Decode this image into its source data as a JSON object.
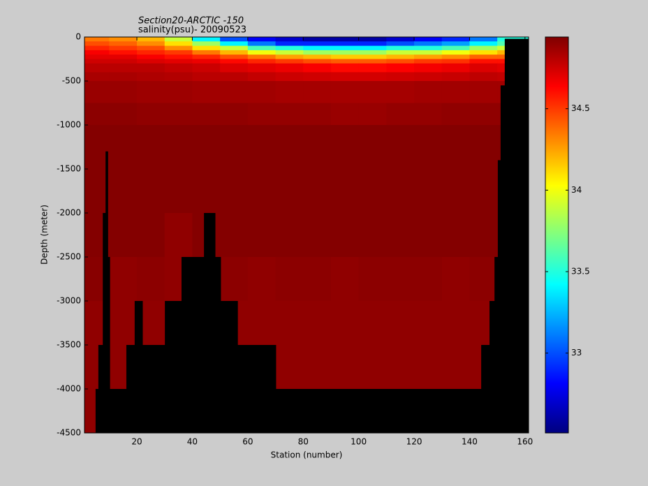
{
  "chart_data": {
    "type": "heatmap",
    "title": "Section20-ARCTIC  -150",
    "subtitle": "salinity(psu)- 20090523",
    "x_label": "Station (number)",
    "y_label": "Depth (meter)",
    "xlim": [
      1.1,
      161.3
    ],
    "ylim": [
      -4500,
      0
    ],
    "xticks": [
      20,
      40,
      60,
      80,
      100,
      120,
      140,
      160
    ],
    "yticks": [
      0,
      -500,
      -1000,
      -1500,
      -2000,
      -2500,
      -3000,
      -3500,
      -4000,
      -4500
    ],
    "colormap": "jet",
    "clim": [
      32.51,
      34.94
    ],
    "colorbar_ticks": [
      33,
      33.5,
      34,
      34.5
    ],
    "x_bins": [
      1.1,
      10,
      20,
      30,
      40,
      50,
      60,
      70,
      80,
      90,
      100,
      110,
      120,
      130,
      140,
      150,
      161.3
    ],
    "depth_bins": [
      0,
      -50,
      -100,
      -150,
      -200,
      -250,
      -300,
      -400,
      -500,
      -750,
      -1000,
      -2000,
      -2500,
      -3000,
      -3500,
      -4000,
      -4500
    ],
    "values": [
      [
        34.35,
        34.3,
        34.2,
        33.9,
        33.4,
        33.0,
        32.8,
        32.7,
        32.6,
        32.6,
        32.6,
        32.7,
        32.8,
        32.9,
        33.1,
        33.5
      ],
      [
        34.45,
        34.4,
        34.3,
        34.1,
        33.8,
        33.4,
        33.1,
        32.9,
        32.9,
        32.9,
        32.9,
        33.0,
        33.1,
        33.2,
        33.4,
        33.6
      ],
      [
        34.55,
        34.5,
        34.45,
        34.3,
        34.1,
        33.9,
        33.6,
        33.5,
        33.4,
        33.4,
        33.4,
        33.5,
        33.5,
        33.6,
        33.8,
        33.9
      ],
      [
        34.65,
        34.6,
        34.55,
        34.5,
        34.35,
        34.2,
        34.0,
        33.9,
        33.8,
        33.8,
        33.8,
        33.9,
        33.9,
        34.0,
        34.1,
        34.2
      ],
      [
        34.7,
        34.7,
        34.65,
        34.6,
        34.55,
        34.45,
        34.35,
        34.25,
        34.2,
        34.15,
        34.15,
        34.2,
        34.25,
        34.3,
        34.4,
        34.4
      ],
      [
        34.75,
        34.75,
        34.72,
        34.7,
        34.68,
        34.62,
        34.55,
        34.5,
        34.45,
        34.42,
        34.42,
        34.45,
        34.5,
        34.52,
        34.6,
        34.6
      ],
      [
        34.8,
        34.8,
        34.8,
        34.78,
        34.76,
        34.72,
        34.7,
        34.68,
        34.65,
        34.62,
        34.62,
        34.64,
        34.66,
        34.68,
        34.72,
        34.7
      ],
      [
        34.84,
        34.84,
        34.83,
        34.82,
        34.8,
        34.8,
        34.78,
        34.76,
        34.75,
        34.74,
        34.74,
        34.75,
        34.76,
        34.77,
        34.79,
        34.78
      ],
      [
        34.88,
        34.88,
        34.87,
        34.87,
        34.86,
        34.86,
        34.86,
        34.85,
        34.85,
        34.85,
        34.85,
        34.85,
        34.86,
        34.86,
        34.86,
        34.86
      ],
      [
        34.91,
        34.91,
        34.9,
        34.9,
        34.9,
        34.9,
        34.89,
        34.89,
        34.89,
        34.88,
        34.88,
        34.89,
        34.89,
        34.9,
        34.9,
        34.9
      ],
      [
        34.93,
        34.93,
        34.93,
        34.93,
        34.93,
        34.93,
        34.93,
        34.93,
        34.93,
        34.93,
        34.93,
        34.93,
        34.93,
        34.93,
        34.93,
        34.93
      ],
      [
        34.93,
        34.93,
        34.93,
        34.9,
        34.93,
        34.93,
        34.93,
        34.93,
        34.93,
        34.93,
        34.93,
        34.93,
        34.93,
        34.93,
        34.93,
        34.93
      ],
      [
        34.92,
        34.9,
        34.91,
        34.9,
        34.9,
        34.91,
        34.9,
        34.91,
        34.91,
        34.9,
        34.91,
        34.91,
        34.91,
        34.9,
        34.91,
        34.91
      ],
      [
        34.9,
        34.9,
        34.9,
        34.9,
        34.9,
        34.9,
        34.9,
        34.9,
        34.9,
        34.9,
        34.9,
        34.9,
        34.9,
        34.9,
        34.9,
        34.9
      ],
      [
        34.9,
        34.9,
        34.9,
        34.9,
        34.9,
        34.9,
        34.9,
        34.9,
        34.9,
        34.9,
        34.9,
        34.9,
        34.9,
        34.9,
        34.9,
        34.9
      ],
      [
        34.9,
        34.9,
        34.9,
        34.9,
        34.9,
        34.9,
        34.9,
        34.9,
        34.9,
        34.9,
        34.9,
        34.9,
        34.9,
        34.9,
        34.9,
        34.9
      ]
    ],
    "bottom": {
      "color": "#000000",
      "x_start": [
        5.1,
        6.1,
        7.7,
        8.7,
        9.5,
        10.2,
        16.2,
        19.2,
        22.0,
        30.1,
        36.1,
        44.2,
        48.2,
        50.2,
        56.3,
        62.1,
        70.1,
        144.2,
        147.2,
        149.0,
        150.2,
        151.2,
        152.7
      ],
      "x_end": [
        6.1,
        7.7,
        8.7,
        9.5,
        10.2,
        16.2,
        19.2,
        22.0,
        30.1,
        36.1,
        44.2,
        48.2,
        50.2,
        56.3,
        62.1,
        70.1,
        144.2,
        147.2,
        149.0,
        150.2,
        151.2,
        152.7,
        161.3
      ],
      "depth": [
        -4000,
        -3500,
        -2000,
        -1300,
        -2500,
        -4000,
        -3500,
        -3000,
        -3500,
        -3000,
        -2500,
        -2000,
        -2500,
        -3000,
        -3500,
        -3500,
        -4000,
        -3500,
        -3000,
        -2500,
        -1400,
        -550,
        -20
      ]
    }
  }
}
